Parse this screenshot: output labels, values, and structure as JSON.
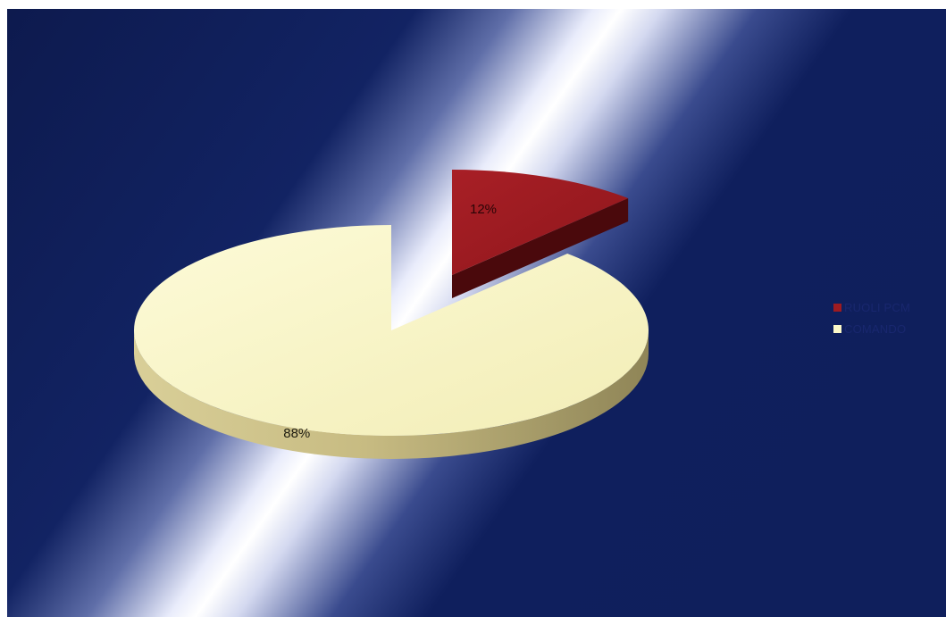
{
  "chart_data": {
    "type": "pie",
    "style": "3d-exploded",
    "slices": [
      {
        "label": "RUOLI PCM",
        "value": 12,
        "data_label": "12%",
        "color": "#9e1b21"
      },
      {
        "label": "COMANDO",
        "value": 88,
        "data_label": "88%",
        "color": "#fbf8c8"
      }
    ],
    "legend_position": "right",
    "background_colors": [
      "#0f1f5c",
      "#ffffff"
    ]
  }
}
